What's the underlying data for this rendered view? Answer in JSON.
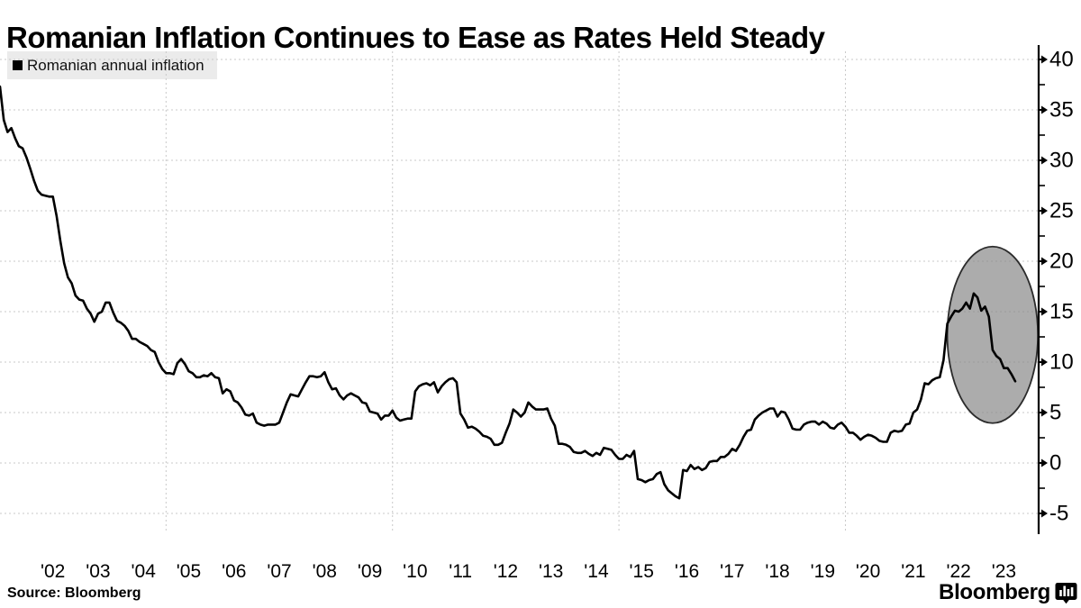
{
  "title": "Romanian Inflation Continues to Ease as Rates Held Steady",
  "legend": {
    "label": "Romanian annual inflation",
    "marker": "black-square",
    "background": "#ebebeb"
  },
  "source": "Source: Bloomberg",
  "brand": {
    "wordmark": "Bloomberg",
    "icon": "bloomberg-chart-bubble-icon"
  },
  "colors": {
    "background": "#ffffff",
    "line": "#000000",
    "grid": "#c9c9c9",
    "axis": "#000000",
    "text": "#000000",
    "highlight_fill": "#8c8c8c",
    "highlight_stroke": "#2b2b2b"
  },
  "chart_data": {
    "type": "line",
    "title": "Romanian Inflation Continues to Ease as Rates Held Steady",
    "legend_entries": [
      "Romanian annual inflation"
    ],
    "unit": "percent, year-over-year",
    "frequency": "monthly",
    "start_month": "2001-05",
    "end_month": "2023-10",
    "x_tick_labels": [
      "'02",
      "'03",
      "'04",
      "'05",
      "'06",
      "'07",
      "'08",
      "'09",
      "'10",
      "'11",
      "'12",
      "'13",
      "'14",
      "'15",
      "'16",
      "'17",
      "'18",
      "'19",
      "'20",
      "'21",
      "'22",
      "'23"
    ],
    "y_ticks": [
      -5,
      0,
      5,
      10,
      15,
      20,
      25,
      30,
      35,
      40
    ],
    "y_minor_step": 2.5,
    "ylim": [
      -7,
      42
    ],
    "grid": "dashed",
    "axis_side": "right",
    "vertical_gridline_years": [
      2005,
      2010,
      2015,
      2020
    ],
    "legend_position": "top-left",
    "annotation": {
      "shape": "ellipse",
      "purpose": "highlights 2022-2023 inflation spike and easing",
      "center_month": "2023-04",
      "center_value": 12.7,
      "rx_months": 12,
      "ry_values": 8.75
    },
    "series": [
      {
        "name": "Romanian annual inflation",
        "values": [
          37.3,
          34.0,
          32.8,
          33.2,
          32.2,
          31.4,
          31.2,
          30.3,
          29.2,
          28.0,
          27.0,
          26.6,
          26.5,
          26.4,
          26.4,
          24.5,
          22.0,
          19.8,
          18.4,
          17.8,
          16.6,
          16.2,
          16.1,
          15.3,
          14.8,
          14.0,
          14.8,
          15.0,
          15.9,
          15.9,
          14.9,
          14.1,
          13.9,
          13.6,
          13.1,
          12.3,
          12.3,
          12.0,
          11.8,
          11.6,
          11.2,
          11.0,
          10.0,
          9.3,
          8.9,
          8.9,
          8.8,
          9.9,
          10.3,
          9.8,
          9.1,
          8.9,
          8.5,
          8.5,
          8.7,
          8.6,
          8.9,
          8.5,
          8.4,
          6.9,
          7.3,
          7.1,
          6.2,
          6.0,
          5.5,
          4.8,
          4.7,
          4.9,
          4.0,
          3.8,
          3.7,
          3.8,
          3.8,
          3.8,
          4.0,
          5.0,
          6.0,
          6.8,
          6.7,
          6.6,
          7.3,
          8.0,
          8.6,
          8.6,
          8.5,
          8.6,
          9.0,
          8.0,
          7.3,
          7.4,
          6.7,
          6.3,
          6.7,
          6.9,
          6.7,
          6.5,
          6.0,
          5.9,
          5.1,
          5.0,
          4.9,
          4.3,
          4.7,
          4.7,
          5.2,
          4.5,
          4.2,
          4.3,
          4.4,
          4.4,
          7.1,
          7.6,
          7.8,
          7.9,
          7.7,
          8.0,
          7.0,
          7.6,
          8.0,
          8.3,
          8.4,
          8.0,
          4.9,
          4.3,
          3.5,
          3.6,
          3.4,
          3.1,
          2.7,
          2.6,
          2.4,
          1.8,
          1.8,
          2.0,
          3.0,
          3.9,
          5.3,
          5.0,
          4.6,
          5.0,
          6.0,
          5.6,
          5.3,
          5.3,
          5.3,
          5.4,
          4.4,
          3.7,
          1.9,
          1.9,
          1.8,
          1.6,
          1.1,
          1.0,
          1.0,
          1.2,
          0.9,
          0.7,
          1.0,
          0.8,
          1.5,
          1.4,
          1.3,
          0.8,
          0.4,
          0.4,
          0.8,
          0.6,
          1.2,
          -1.6,
          -1.7,
          -1.9,
          -1.7,
          -1.6,
          -1.1,
          -0.9,
          -2.1,
          -2.7,
          -3.0,
          -3.3,
          -3.5,
          -0.7,
          -0.8,
          -0.2,
          -0.6,
          -0.4,
          -0.7,
          -0.5,
          0.1,
          0.2,
          0.2,
          0.6,
          0.6,
          0.9,
          1.4,
          1.2,
          1.8,
          2.6,
          3.2,
          3.3,
          4.3,
          4.7,
          5.0,
          5.2,
          5.4,
          5.4,
          4.6,
          5.1,
          5.0,
          4.3,
          3.4,
          3.3,
          3.3,
          3.8,
          4.0,
          4.1,
          4.1,
          3.8,
          4.1,
          3.9,
          3.5,
          3.4,
          3.8,
          4.0,
          3.6,
          3.0,
          3.0,
          2.7,
          2.3,
          2.6,
          2.8,
          2.7,
          2.5,
          2.2,
          2.1,
          2.1,
          3.0,
          3.2,
          3.1,
          3.2,
          3.8,
          3.9,
          5.0,
          5.3,
          6.3,
          7.9,
          7.8,
          8.2,
          8.4,
          8.5,
          10.2,
          13.8,
          14.5,
          15.1,
          15.0,
          15.3,
          15.9,
          15.3,
          16.8,
          16.4,
          15.1,
          15.5,
          14.5,
          11.2,
          10.6,
          10.3,
          9.4,
          9.4,
          8.8,
          8.1
        ]
      }
    ]
  }
}
